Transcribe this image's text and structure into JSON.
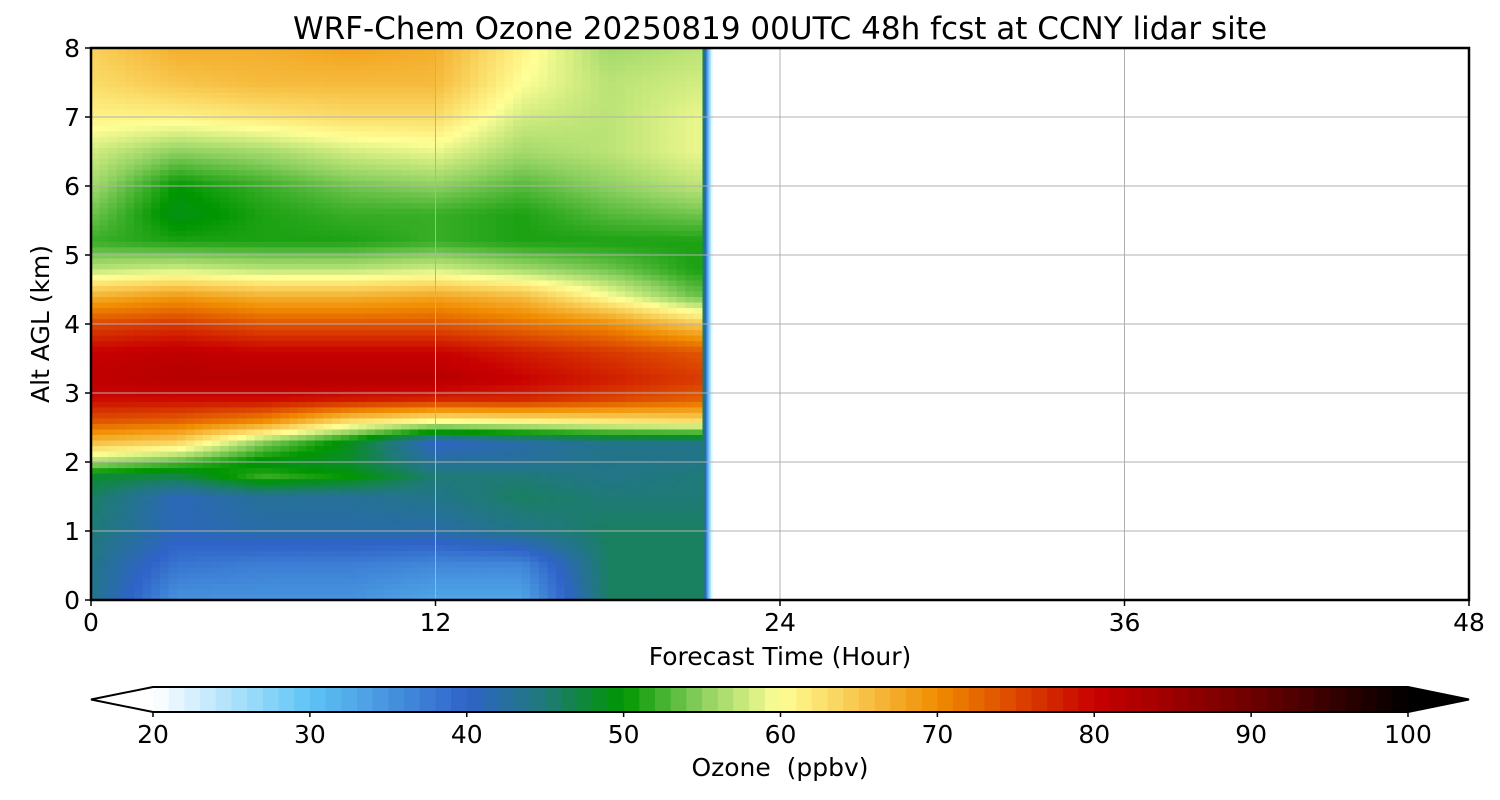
{
  "chart_data": {
    "type": "heatmap",
    "title": "WRF-Chem Ozone  20250819 00UTC 48h fcst at CCNY lidar site",
    "xlabel": "Forecast Time (Hour)",
    "ylabel": "Alt AGL (km)",
    "xlim": [
      0,
      48
    ],
    "ylim": [
      0,
      8
    ],
    "grid": true,
    "x_ticks": [
      0,
      12,
      24,
      36,
      48
    ],
    "x_tick_labels": [
      "0",
      "12",
      "24",
      "36",
      "48"
    ],
    "y_ticks": [
      0,
      1,
      2,
      3,
      4,
      5,
      6,
      7,
      8
    ],
    "y_tick_labels": [
      "0",
      "1",
      "2",
      "3",
      "4",
      "5",
      "6",
      "7",
      "8"
    ],
    "data_x_extent": [
      0,
      21.3
    ],
    "colorbar": {
      "label": "Ozone  (ppbv)",
      "range": [
        20,
        100
      ],
      "extend": "both",
      "ticks": [
        20,
        30,
        40,
        50,
        60,
        70,
        80,
        90,
        100
      ],
      "tick_labels": [
        "20",
        "30",
        "40",
        "50",
        "60",
        "70",
        "80",
        "90",
        "100"
      ],
      "color_stops": [
        {
          "value": 20,
          "color": "#ffffff"
        },
        {
          "value": 30,
          "color": "#5ec4f5"
        },
        {
          "value": 40,
          "color": "#2f63c8"
        },
        {
          "value": 45,
          "color": "#1f7a78"
        },
        {
          "value": 50,
          "color": "#009600"
        },
        {
          "value": 55,
          "color": "#8cd060"
        },
        {
          "value": 60,
          "color": "#ffff96"
        },
        {
          "value": 70,
          "color": "#f08c00"
        },
        {
          "value": 80,
          "color": "#c80000"
        },
        {
          "value": 90,
          "color": "#6e0000"
        },
        {
          "value": 100,
          "color": "#000000"
        }
      ]
    },
    "profile_altitudes_km": [
      0,
      0.5,
      1,
      1.5,
      1.8,
      2,
      2.3,
      2.6,
      2.9,
      3.2,
      3.6,
      4,
      4.4,
      4.8,
      5.2,
      5.6,
      6,
      6.5,
      7,
      7.5,
      8
    ],
    "profiles": [
      {
        "hour": 0,
        "ozone_ppbv": [
          44,
          44,
          45,
          46,
          48,
          56,
          66,
          74,
          79,
          81,
          80,
          75,
          67,
          57,
          52,
          54,
          56,
          58,
          61,
          63,
          64
        ]
      },
      {
        "hour": 3,
        "ozone_ppbv": [
          35,
          38,
          41,
          41,
          47,
          53,
          64,
          73,
          79,
          82,
          81,
          76,
          69,
          58,
          51,
          49,
          50,
          55,
          61,
          65,
          67
        ]
      },
      {
        "hour": 6,
        "ozone_ppbv": [
          35,
          37,
          42,
          43,
          52,
          49,
          55,
          70,
          79,
          82,
          80,
          74,
          67,
          57,
          51,
          51,
          52,
          56,
          62,
          66,
          67
        ]
      },
      {
        "hour": 9,
        "ozone_ppbv": [
          35,
          37,
          42,
          43,
          50,
          48,
          49,
          63,
          78,
          82,
          80,
          74,
          67,
          57,
          51,
          52,
          54,
          58,
          63,
          66,
          68
        ]
      },
      {
        "hour": 12,
        "ozone_ppbv": [
          33,
          36,
          42,
          44,
          45,
          43,
          40,
          60,
          77,
          82,
          80,
          74,
          68,
          58,
          52,
          52,
          55,
          59,
          63,
          66,
          67
        ]
      },
      {
        "hour": 15,
        "ozone_ppbv": [
          33,
          36,
          44,
          46,
          45,
          43,
          42,
          61,
          77,
          80,
          78,
          72,
          66,
          56,
          51,
          51,
          53,
          56,
          58,
          60,
          61
        ]
      },
      {
        "hour": 18,
        "ozone_ppbv": [
          46,
          46,
          46,
          45,
          44,
          44,
          44,
          62,
          75,
          78,
          76,
          70,
          60,
          54,
          51,
          53,
          55,
          57,
          57,
          57,
          56
        ]
      },
      {
        "hour": 21,
        "ozone_ppbv": [
          46,
          46,
          46,
          45,
          45,
          44,
          44,
          63,
          73,
          76,
          74,
          65,
          54,
          51,
          51,
          54,
          57,
          59,
          59,
          58,
          57
        ]
      }
    ]
  }
}
